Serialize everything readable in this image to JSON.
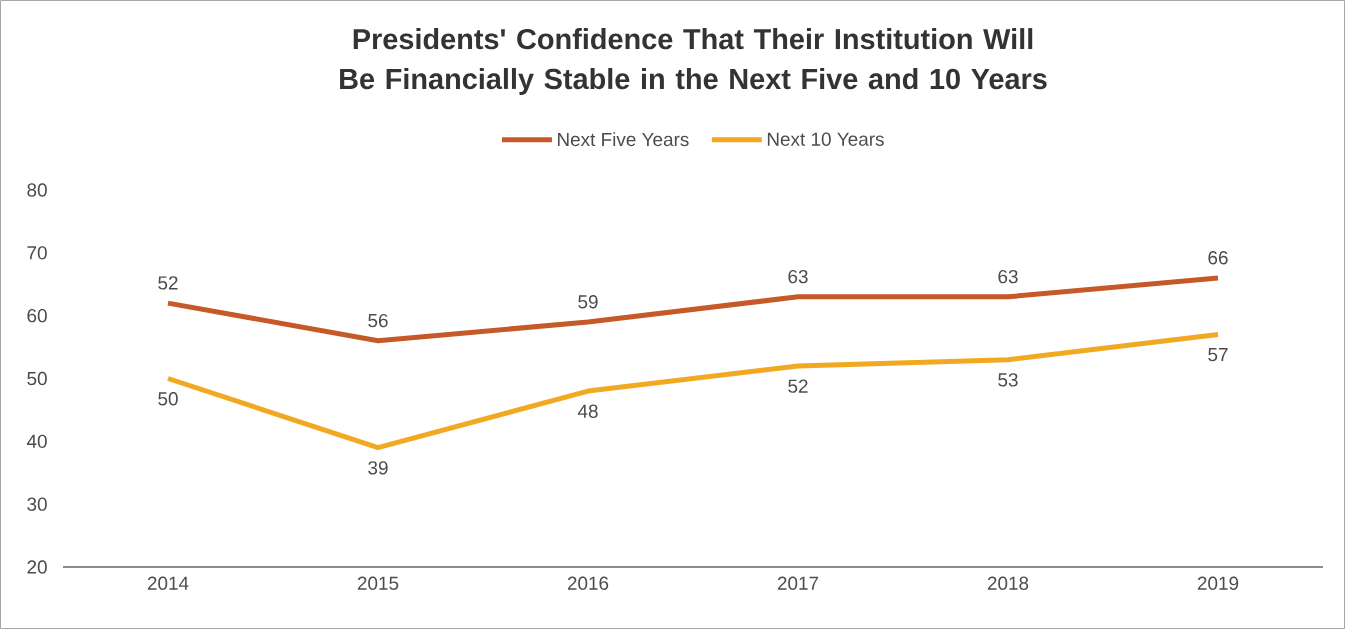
{
  "chart_data": {
    "type": "line",
    "title": "Presidents' Confidence That Their Institution Will Be Financially Stable in the Next Five and 10 Years",
    "categories": [
      "2014",
      "2015",
      "2016",
      "2017",
      "2018",
      "2019"
    ],
    "series": [
      {
        "name": "Next Five Years",
        "color": "#c55a28",
        "values": [
          62,
          56,
          59,
          63,
          63,
          66
        ],
        "value_labels": [
          null,
          "56",
          "59",
          "63",
          "63",
          "66"
        ]
      },
      {
        "name": "Next 10 Years",
        "color": "#f2a922",
        "values": [
          50,
          39,
          48,
          52,
          53,
          57
        ],
        "value_labels": [
          "50",
          "39",
          "48",
          "52",
          "53",
          "57"
        ]
      }
    ],
    "annotations": [
      {
        "text": "52",
        "x": "2014",
        "y": 62
      }
    ],
    "ylim": [
      20,
      80
    ],
    "yticks": [
      20,
      30,
      40,
      50,
      60,
      70,
      80
    ],
    "legend": "top",
    "marker": "none",
    "line_style": "solid",
    "grid": false
  }
}
